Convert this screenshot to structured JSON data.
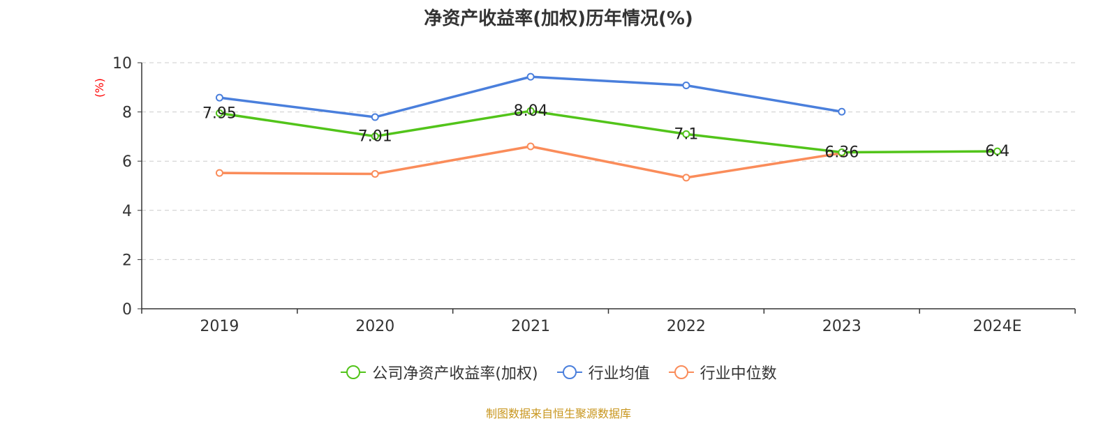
{
  "title": "净资产收益率(加权)历年情况(%)",
  "source": "制图数据来自恒生聚源数据库",
  "chart_data": {
    "type": "line",
    "title": "净资产收益率(加权)历年情况(%)",
    "ylabel": "(%)",
    "ylabel_color": "#ff0000",
    "xlabel": "",
    "ylim": [
      0,
      10
    ],
    "yticks": [
      0,
      2,
      4,
      6,
      8,
      10
    ],
    "grid": true,
    "legend_position": "bottom",
    "categories": [
      "2019",
      "2020",
      "2021",
      "2022",
      "2023",
      "2024E"
    ],
    "series": [
      {
        "name": "公司净资产收益率(加权)",
        "color": "#52c41a",
        "values": [
          7.95,
          7.01,
          8.04,
          7.1,
          6.36,
          6.4
        ],
        "labels": [
          "7.95",
          "7.01",
          "8.04",
          "7.1",
          "6.36",
          "6.4"
        ]
      },
      {
        "name": "行业均值",
        "color": "#4a7fdc",
        "values": [
          8.58,
          7.79,
          9.43,
          9.08,
          8.01,
          null
        ]
      },
      {
        "name": "行业中位数",
        "color": "#fa8c5a",
        "values": [
          5.52,
          5.48,
          6.6,
          5.33,
          6.33,
          null
        ]
      }
    ]
  }
}
